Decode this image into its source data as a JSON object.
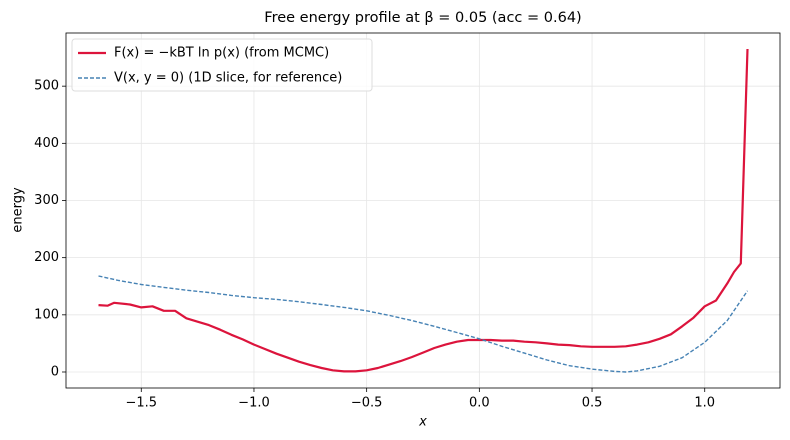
{
  "chart_data": {
    "type": "line",
    "title": "Free energy profile at β = 0.05  (acc = 0.64)",
    "x_label": "x",
    "y_label": "energy",
    "xlim": [
      -1.834,
      1.334
    ],
    "ylim": [
      -28,
      593
    ],
    "xticks": [
      {
        "value": -1.5,
        "label": "−1.5"
      },
      {
        "value": -1.0,
        "label": "−1.0"
      },
      {
        "value": -0.5,
        "label": "−0.5"
      },
      {
        "value": 0,
        "label": "0.0"
      },
      {
        "value": 0.5,
        "label": "0.5"
      },
      {
        "value": 1.0,
        "label": "1.0"
      }
    ],
    "yticks": [
      0,
      100,
      200,
      300,
      400,
      500
    ],
    "grid": true,
    "legend": "upper left",
    "series": [
      {
        "name": "F(x) = −kBT ln p(x)  (from MCMC)",
        "color": "#dc143c",
        "style": "solid",
        "x": [
          -1.69,
          -1.65,
          -1.62,
          -1.55,
          -1.5,
          -1.45,
          -1.4,
          -1.35,
          -1.3,
          -1.25,
          -1.2,
          -1.15,
          -1.1,
          -1.05,
          -1.0,
          -0.95,
          -0.9,
          -0.85,
          -0.8,
          -0.75,
          -0.7,
          -0.65,
          -0.6,
          -0.55,
          -0.5,
          -0.45,
          -0.4,
          -0.35,
          -0.3,
          -0.25,
          -0.2,
          -0.15,
          -0.1,
          -0.05,
          0,
          0.05,
          0.1,
          0.15,
          0.2,
          0.25,
          0.3,
          0.35,
          0.4,
          0.45,
          0.5,
          0.55,
          0.6,
          0.65,
          0.7,
          0.75,
          0.8,
          0.85,
          0.9,
          0.95,
          1.0,
          1.05,
          1.1,
          1.13,
          1.16,
          1.19
        ],
        "values": [
          117,
          116,
          121,
          118,
          113,
          115,
          107,
          107,
          94,
          88,
          82,
          74,
          65,
          57,
          48,
          40,
          32,
          25,
          18,
          12,
          7,
          3,
          1,
          1,
          3,
          7,
          13,
          19,
          26,
          34,
          42,
          48,
          53,
          56,
          56,
          56,
          55,
          55,
          53,
          52,
          50,
          48,
          47,
          45,
          44,
          44,
          44,
          45,
          48,
          52,
          58,
          66,
          80,
          95,
          115,
          125,
          155,
          175,
          190,
          565
        ]
      },
      {
        "name": "V(x, y = 0)  (1D slice, for reference)",
        "color": "#4682b4",
        "style": "dashed",
        "x": [
          -1.69,
          -1.6,
          -1.5,
          -1.4,
          -1.3,
          -1.2,
          -1.1,
          -1.0,
          -0.9,
          -0.8,
          -0.7,
          -0.6,
          -0.5,
          -0.4,
          -0.3,
          -0.2,
          -0.1,
          0,
          0.1,
          0.2,
          0.3,
          0.4,
          0.5,
          0.6,
          0.65,
          0.7,
          0.8,
          0.9,
          1.0,
          1.1,
          1.19
        ],
        "values": [
          168,
          160,
          153,
          148,
          143,
          139,
          134,
          130,
          127,
          123,
          118,
          113,
          107,
          99,
          90,
          80,
          69,
          58,
          45,
          33,
          21,
          11,
          5,
          1,
          0,
          2,
          10,
          25,
          52,
          90,
          142
        ]
      }
    ]
  }
}
